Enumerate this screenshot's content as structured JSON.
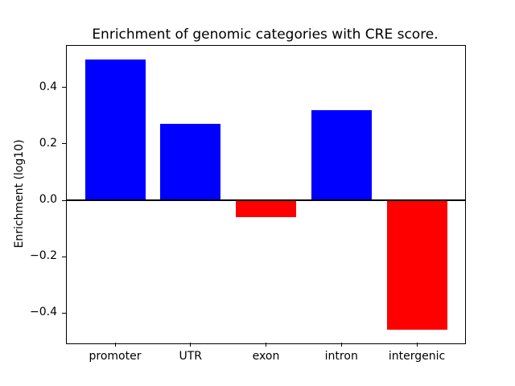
{
  "chart_data": {
    "type": "bar",
    "title": "Enrichment of genomic categories with CRE score.",
    "xlabel": "",
    "ylabel": "Enrichment (log10)",
    "categories": [
      "promoter",
      "UTR",
      "exon",
      "intron",
      "intergenic"
    ],
    "values": [
      0.5,
      0.27,
      -0.06,
      0.32,
      -0.46
    ],
    "bar_colors": [
      "#0000ff",
      "#0000ff",
      "#ff0000",
      "#0000ff",
      "#ff0000"
    ],
    "positive_color": "#0000ff",
    "negative_color": "#ff0000",
    "yticks": [
      0.4,
      0.2,
      0.0,
      -0.2,
      -0.4
    ],
    "ytick_labels": [
      "0.4",
      "0.2",
      "0.0",
      "−0.2",
      "−0.4"
    ],
    "ylim": [
      -0.508,
      0.548
    ],
    "grid": false,
    "legend": null,
    "zero_line": true,
    "zero_line_color": "#000000",
    "background_color": "#ffffff"
  }
}
